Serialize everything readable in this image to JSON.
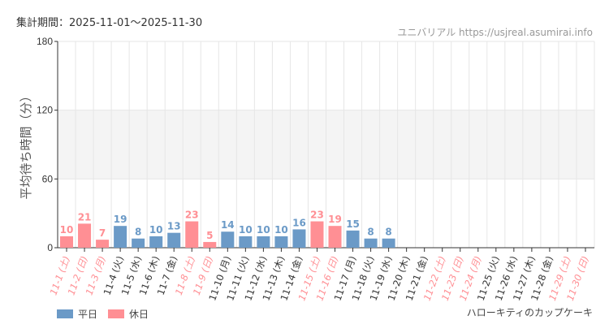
{
  "header": {
    "period": "集計期間：2025-11-01～2025-11-30",
    "credit": "ユニバリアル https://usjreal.asumirai.info"
  },
  "attraction": "ハローキティのカップケーキ",
  "colors": {
    "weekday": "#6b9ac7",
    "holiday": "#ff8f94",
    "weekday_label": "#333333",
    "holiday_label": "#ff8f94",
    "band": "#f4f4f4",
    "grid": "#e6e6e6"
  },
  "chart_data": {
    "type": "bar",
    "ylabel": "平均待ち時間（分）",
    "ylim": [
      0,
      180
    ],
    "yticks": [
      0,
      60,
      120,
      180
    ],
    "grid": true,
    "legend_placement": "bottom-left",
    "legend": [
      {
        "name": "平日",
        "key": "weekday"
      },
      {
        "name": "休日",
        "key": "holiday"
      }
    ],
    "categories": [
      "11-1 (土)",
      "11-2 (日)",
      "11-3 (月)",
      "11-4 (火)",
      "11-5 (水)",
      "11-6 (木)",
      "11-7 (金)",
      "11-8 (土)",
      "11-9 (日)",
      "11-10 (月)",
      "11-11 (火)",
      "11-12 (水)",
      "11-13 (木)",
      "11-14 (金)",
      "11-15 (土)",
      "11-16 (日)",
      "11-17 (月)",
      "11-18 (火)",
      "11-19 (水)",
      "11-20 (木)",
      "11-21 (金)",
      "11-22 (土)",
      "11-23 (日)",
      "11-24 (月)",
      "11-25 (火)",
      "11-26 (水)",
      "11-27 (木)",
      "11-28 (金)",
      "11-29 (土)",
      "11-30 (日)"
    ],
    "holiday": [
      true,
      true,
      true,
      false,
      false,
      false,
      false,
      true,
      true,
      false,
      false,
      false,
      false,
      false,
      true,
      true,
      false,
      false,
      false,
      false,
      false,
      true,
      true,
      true,
      false,
      false,
      false,
      false,
      true,
      true
    ],
    "values": [
      10,
      21,
      7,
      19,
      8,
      10,
      13,
      23,
      5,
      14,
      10,
      10,
      10,
      16,
      23,
      19,
      15,
      8,
      8,
      null,
      null,
      null,
      null,
      null,
      null,
      null,
      null,
      null,
      null,
      null
    ]
  }
}
